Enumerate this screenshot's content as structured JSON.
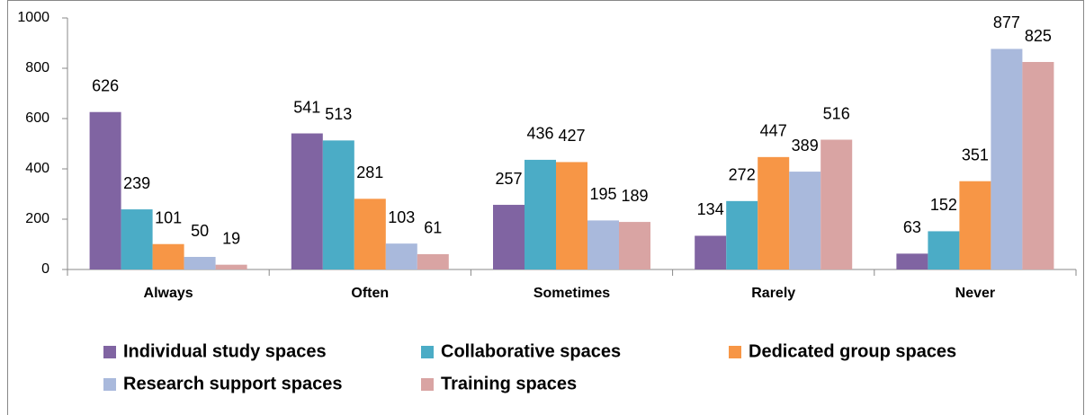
{
  "chart_data": {
    "type": "bar",
    "categories": [
      "Always",
      "Often",
      "Sometimes",
      "Rarely",
      "Never"
    ],
    "series": [
      {
        "name": "Individual study spaces",
        "color": "#8064a2",
        "values": [
          626,
          541,
          257,
          134,
          63
        ]
      },
      {
        "name": "Collaborative spaces",
        "color": "#4bacc6",
        "values": [
          239,
          513,
          436,
          272,
          152
        ]
      },
      {
        "name": "Dedicated group spaces",
        "color": "#f79646",
        "values": [
          101,
          281,
          427,
          447,
          351
        ]
      },
      {
        "name": "Research support spaces",
        "color": "#a9b9dc",
        "values": [
          50,
          103,
          195,
          389,
          877
        ]
      },
      {
        "name": "Training spaces",
        "color": "#d9a4a3",
        "values": [
          19,
          61,
          189,
          516,
          825
        ]
      }
    ],
    "ylim": [
      0,
      1000
    ],
    "yticks": [
      0,
      200,
      400,
      600,
      800,
      1000
    ],
    "grid": false,
    "legend": "bottom"
  }
}
